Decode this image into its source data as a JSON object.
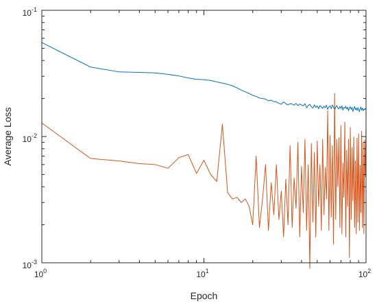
{
  "chart_data": {
    "type": "line",
    "title": "",
    "xlabel": "Epoch",
    "ylabel": "Average Loss",
    "xscale": "log",
    "yscale": "log",
    "xlim": [
      1,
      100
    ],
    "ylim": [
      0.001,
      0.1
    ],
    "x_ticks": [
      {
        "value": 1,
        "base": "10",
        "exp": "0"
      },
      {
        "value": 10,
        "base": "10",
        "exp": "1"
      },
      {
        "value": 100,
        "base": "10",
        "exp": "2"
      }
    ],
    "y_ticks": [
      {
        "value": 0.001,
        "base": "10",
        "exp": "-3"
      },
      {
        "value": 0.01,
        "base": "10",
        "exp": "-2"
      },
      {
        "value": 0.1,
        "base": "10",
        "exp": "-1"
      }
    ],
    "grid": false,
    "box": true,
    "series": [
      {
        "color": "#0072BD",
        "x": [
          1,
          2,
          3,
          4,
          5,
          6,
          7,
          8,
          9,
          10,
          11,
          12,
          13,
          14,
          15,
          16,
          17,
          18,
          19,
          20,
          21,
          22,
          23,
          24,
          25,
          26,
          27,
          28,
          29,
          30,
          31,
          32,
          33,
          34,
          35,
          36,
          37,
          38,
          39,
          40,
          41,
          42,
          43,
          44,
          45,
          46,
          47,
          48,
          49,
          50,
          51,
          52,
          53,
          54,
          55,
          56,
          57,
          58,
          59,
          60,
          61,
          62,
          63,
          64,
          65,
          66,
          67,
          68,
          69,
          70,
          71,
          72,
          73,
          74,
          75,
          76,
          77,
          78,
          79,
          80,
          81,
          82,
          83,
          84,
          85,
          86,
          87,
          88,
          89,
          90,
          91,
          92,
          93,
          94,
          95,
          96,
          97,
          98,
          99,
          100
        ],
        "values": [
          0.0555,
          0.0355,
          0.0325,
          0.0322,
          0.0319,
          0.0311,
          0.0302,
          0.0291,
          0.0284,
          0.0282,
          0.0278,
          0.0271,
          0.0265,
          0.0259,
          0.0252,
          0.0243,
          0.0233,
          0.0226,
          0.0219,
          0.0212,
          0.0208,
          0.0202,
          0.02,
          0.0198,
          0.0192,
          0.0194,
          0.0189,
          0.0188,
          0.0183,
          0.018,
          0.0188,
          0.0182,
          0.0178,
          0.0182,
          0.0181,
          0.0177,
          0.0183,
          0.0176,
          0.0181,
          0.0178,
          0.0175,
          0.0182,
          0.0169,
          0.0176,
          0.018,
          0.0172,
          0.0168,
          0.0178,
          0.017,
          0.0175,
          0.0166,
          0.0176,
          0.0171,
          0.0167,
          0.0174,
          0.0169,
          0.0177,
          0.0164,
          0.0172,
          0.0175,
          0.0166,
          0.0178,
          0.0171,
          0.0163,
          0.017,
          0.0176,
          0.0169,
          0.0165,
          0.0173,
          0.0167,
          0.0175,
          0.0162,
          0.017,
          0.0168,
          0.0174,
          0.0165,
          0.0171,
          0.016,
          0.0169,
          0.0172,
          0.0164,
          0.017,
          0.0158,
          0.0167,
          0.0173,
          0.0163,
          0.0168,
          0.0161,
          0.0169,
          0.0165,
          0.0157,
          0.0166,
          0.0171,
          0.0162,
          0.0168,
          0.016,
          0.0165,
          0.0163,
          0.0167,
          0.0164
        ]
      },
      {
        "color": "#D95319",
        "x": [
          1,
          2,
          3,
          4,
          5,
          6,
          7,
          8,
          9,
          10,
          11,
          12,
          13,
          14,
          15,
          16,
          17,
          18,
          19,
          20,
          21,
          22,
          23,
          24,
          25,
          26,
          27,
          28,
          29,
          30,
          31,
          32,
          33,
          34,
          35,
          36,
          37,
          38,
          39,
          40,
          41,
          42,
          43,
          44,
          45,
          46,
          47,
          48,
          49,
          50,
          51,
          52,
          53,
          54,
          55,
          56,
          57,
          58,
          59,
          60,
          61,
          62,
          63,
          64,
          65,
          66,
          67,
          68,
          69,
          70,
          71,
          72,
          73,
          74,
          75,
          76,
          77,
          78,
          79,
          80,
          81,
          82,
          83,
          84,
          85,
          86,
          87,
          88,
          89,
          90,
          91,
          92,
          93,
          94,
          95,
          96,
          97,
          98,
          99,
          100
        ],
        "values": [
          0.0128,
          0.0067,
          0.0064,
          0.0061,
          0.006,
          0.0056,
          0.0068,
          0.0072,
          0.0051,
          0.0065,
          0.005,
          0.0044,
          0.0125,
          0.0036,
          0.0032,
          0.0033,
          0.003,
          0.0032,
          0.0028,
          0.002,
          0.007,
          0.0019,
          0.0032,
          0.006,
          0.0018,
          0.0043,
          0.0024,
          0.006,
          0.0022,
          0.0037,
          0.0016,
          0.0046,
          0.002,
          0.0085,
          0.0019,
          0.0047,
          0.0027,
          0.009,
          0.0016,
          0.0058,
          0.0025,
          0.0095,
          0.0018,
          0.006,
          0.0009,
          0.0088,
          0.0021,
          0.0075,
          0.0016,
          0.0092,
          0.0028,
          0.006,
          0.0018,
          0.0095,
          0.0024,
          0.0057,
          0.0032,
          0.016,
          0.0018,
          0.0102,
          0.0023,
          0.0085,
          0.0014,
          0.022,
          0.0022,
          0.0095,
          0.004,
          0.0098,
          0.0019,
          0.0122,
          0.0017,
          0.0062,
          0.0033,
          0.013,
          0.0016,
          0.0078,
          0.0028,
          0.0095,
          0.0011,
          0.0118,
          0.0022,
          0.0082,
          0.0031,
          0.0099,
          0.0019,
          0.0064,
          0.0017,
          0.0097,
          0.0021,
          0.0105,
          0.0018,
          0.0059,
          0.0025,
          0.011,
          0.0019,
          0.009,
          0.0017,
          0.0094,
          0.0048,
          0.012
        ]
      }
    ]
  }
}
